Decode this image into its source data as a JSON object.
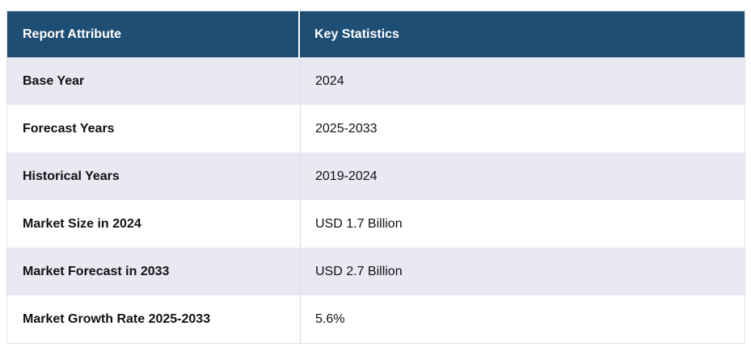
{
  "page": {
    "background": "#ffffff"
  },
  "table": {
    "header": {
      "attribute_label": "Report Attribute",
      "statistics_label": "Key Statistics"
    },
    "rows": [
      {
        "attribute": "Base Year",
        "value": "2024"
      },
      {
        "attribute": "Forecast Years",
        "value": "2025-2033"
      },
      {
        "attribute": "Historical Years",
        "value": "2019-2024"
      },
      {
        "attribute": "Market Size in 2024",
        "value": "USD 1.7 Billion"
      },
      {
        "attribute": "Market Forecast in 2033",
        "value": "USD 2.7 Billion"
      },
      {
        "attribute": "Market Growth Rate 2025-2033",
        "value": "5.6%"
      }
    ],
    "colors": {
      "header_bg": "#1f4e74",
      "header_text": "#ffffff",
      "row_bg": "#ffffff",
      "row_alt_bg": "#e8e9f3",
      "body_text": "#111111",
      "outer_border": "#e2e2e2",
      "column_divider": "#d8dade"
    }
  },
  "chart_data": {
    "type": "table",
    "title": "",
    "columns": [
      "Report Attribute",
      "Key Statistics"
    ],
    "rows": [
      [
        "Base Year",
        "2024"
      ],
      [
        "Forecast Years",
        "2025-2033"
      ],
      [
        "Historical Years",
        "2019-2024"
      ],
      [
        "Market Size in 2024",
        "USD 1.7 Billion"
      ],
      [
        "Market Forecast in 2033",
        "USD 2.7 Billion"
      ],
      [
        "Market Growth Rate 2025-2033",
        "5.6%"
      ]
    ],
    "layout": {
      "header_style": "dark-blue bold white text",
      "row_striping": "white / light-lavender alternating",
      "first_column_bold": true
    }
  }
}
